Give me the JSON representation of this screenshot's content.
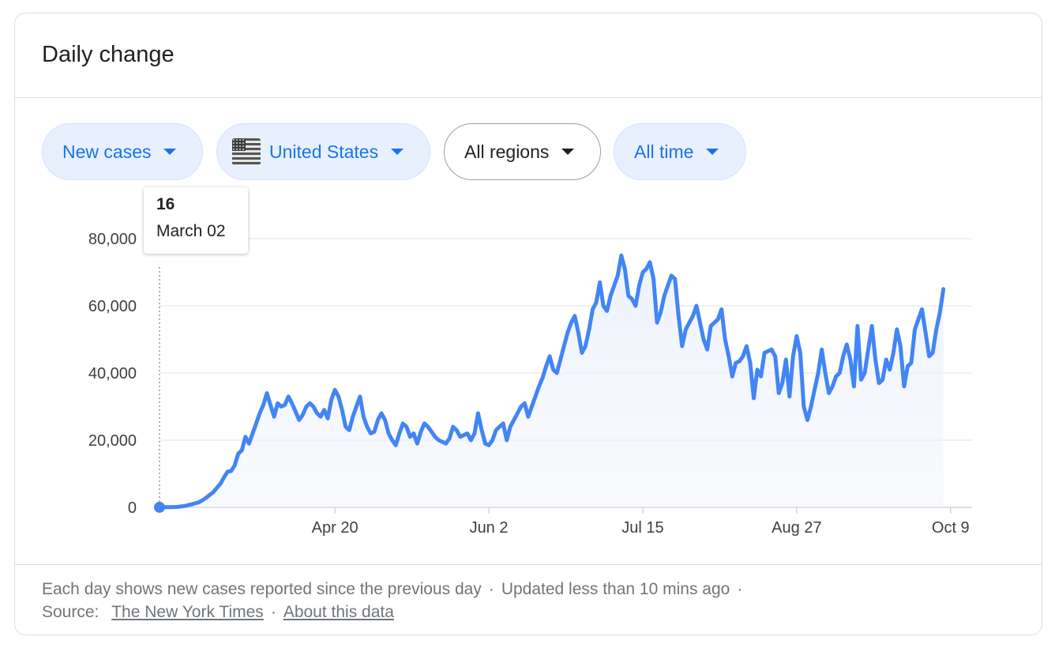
{
  "card": {
    "title": "Daily change"
  },
  "filters": [
    {
      "label": "New cases",
      "active": true
    },
    {
      "label": "United States",
      "active": true,
      "icon": "us-flag-icon"
    },
    {
      "label": "All regions",
      "active": false
    },
    {
      "label": "All time",
      "active": true
    }
  ],
  "tooltip": {
    "value": "16",
    "date": "March 02"
  },
  "footer": {
    "note": "Each day shows new cases reported since the previous day",
    "updated": "Updated less than 10 mins ago",
    "source_label": "Source:",
    "source_link": "The New York Times",
    "about_link": "About this data"
  },
  "colors": {
    "accent": "#4285f4",
    "chip_active_bg": "#e8f0fe",
    "chip_active_text": "#1a73e8",
    "grid": "#e1e3e8",
    "area_fill": "#eef2fb"
  },
  "chart_data": {
    "type": "area",
    "title": "",
    "xlabel": "",
    "ylabel": "",
    "ylim": [
      0,
      80000
    ],
    "yticks": [
      0,
      20000,
      40000,
      60000,
      80000
    ],
    "ytick_labels": [
      "0",
      "20,000",
      "40,000",
      "60,000",
      "80,000"
    ],
    "xtick_labels": [
      "Apr 20",
      "Jun 2",
      "Jul 15",
      "Aug 27",
      "Oct 9"
    ],
    "xticks": [
      "2020-04-20",
      "2020-06-02",
      "2020-07-15",
      "2020-08-27",
      "2020-10-09"
    ],
    "grid": true,
    "series": [
      {
        "start_date": "2020-03-02",
        "end_date": "2020-10-15",
        "values": [
          16,
          30,
          50,
          70,
          100,
          150,
          250,
          400,
          650,
          900,
          1200,
          1500,
          2100,
          2800,
          3700,
          4500,
          5800,
          7000,
          8900,
          10600,
          10800,
          12500,
          16000,
          17000,
          21000,
          19000,
          22000,
          25000,
          28000,
          30500,
          34000,
          30500,
          27000,
          31000,
          30000,
          30500,
          33000,
          31000,
          28500,
          26000,
          27500,
          30000,
          31000,
          30000,
          28000,
          27000,
          29000,
          26500,
          32000,
          35000,
          33000,
          29000,
          24000,
          23000,
          27000,
          30000,
          33000,
          27000,
          24000,
          22000,
          22500,
          26000,
          28000,
          26000,
          22000,
          20000,
          18500,
          22000,
          25000,
          24000,
          21000,
          22000,
          19000,
          22500,
          25000,
          24000,
          22500,
          21000,
          20000,
          19500,
          19000,
          20500,
          24000,
          23000,
          21000,
          21500,
          22000,
          20000,
          22000,
          28000,
          23000,
          19000,
          18500,
          20000,
          23000,
          24000,
          25000,
          20000,
          24000,
          26000,
          28000,
          30000,
          31000,
          27000,
          30000,
          33000,
          36000,
          38500,
          42000,
          45000,
          41000,
          40000,
          44000,
          48000,
          52000,
          55000,
          57000,
          52000,
          46000,
          48000,
          53000,
          59000,
          61000,
          67000,
          60000,
          58500,
          63000,
          66000,
          69000,
          75000,
          71000,
          63000,
          62000,
          60000,
          66000,
          70000,
          71000,
          73000,
          68000,
          55000,
          58000,
          63000,
          66000,
          69000,
          68000,
          57000,
          48000,
          53000,
          55000,
          57000,
          60000,
          55000,
          50000,
          47000,
          54000,
          55000,
          56000,
          59000,
          50000,
          45000,
          39000,
          43000,
          43500,
          45000,
          48000,
          43000,
          32500,
          41000,
          39000,
          46000,
          46500,
          47000,
          45000,
          34000,
          37000,
          44000,
          33000,
          45000,
          51000,
          46000,
          30000,
          26000,
          30000,
          35000,
          40000,
          47000,
          40000,
          34000,
          36000,
          39000,
          40000,
          45000,
          48500,
          44000,
          36000,
          54000,
          38000,
          40000,
          47000,
          54000,
          44000,
          37000,
          38000,
          44000,
          41000,
          46000,
          53000,
          48000,
          36000,
          42000,
          43000,
          53000,
          56000,
          59000,
          52000,
          45000,
          46000,
          53000,
          58000,
          65000
        ]
      }
    ]
  }
}
